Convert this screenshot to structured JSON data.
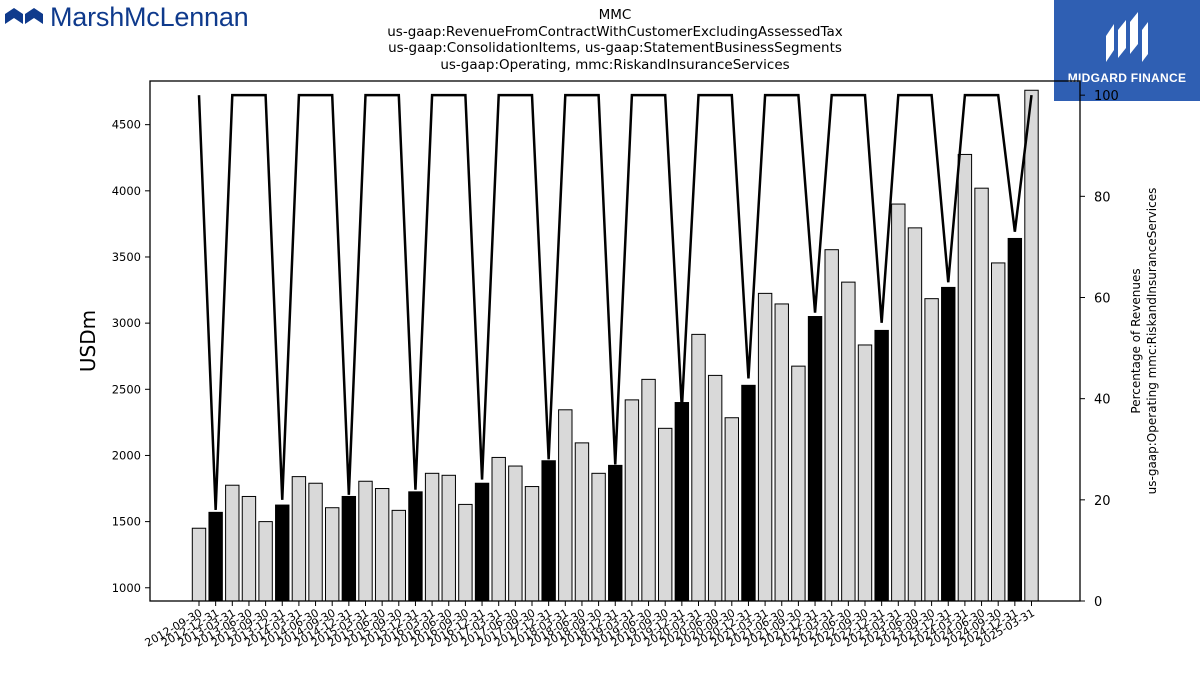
{
  "brand": {
    "left_logo_text": "MarshMcLennan",
    "right_logo_text": "MIDGARD FINANCE",
    "left_color": "#0f3a8c",
    "right_bg": "#2f5fb3"
  },
  "title_lines": [
    "MMC",
    "us-gaap:RevenueFromContractWithCustomerExcludingAssessedTax",
    "us-gaap:ConsolidationItems, us-gaap:StatementBusinessSegments",
    "us-gaap:Operating, mmc:RiskandInsuranceServices"
  ],
  "chart_data": {
    "type": "bar",
    "ylabel": "USDm",
    "y2label_lines": [
      "Percentage of Revenues",
      "us-gaap:Operating mmc:RiskandInsuranceServices"
    ],
    "ylim": [
      900,
      4830
    ],
    "yticks": [
      1000,
      1500,
      2000,
      2500,
      3000,
      3500,
      4000,
      4500
    ],
    "y2lim": [
      0,
      102.8
    ],
    "y2ticks": [
      0,
      20,
      40,
      60,
      80,
      100
    ],
    "categories": [
      "2012-09-30",
      "2012-12-31",
      "2013-03-31",
      "2013-06-30",
      "2013-09-30",
      "2013-12-31",
      "2014-03-31",
      "2014-06-30",
      "2014-09-30",
      "2014-12-31",
      "2015-03-31",
      "2015-06-30",
      "2015-09-30",
      "2015-12-31",
      "2016-03-31",
      "2016-06-30",
      "2016-09-30",
      "2016-12-31",
      "2017-03-31",
      "2017-06-30",
      "2017-09-30",
      "2017-12-31",
      "2018-03-31",
      "2018-06-30",
      "2018-09-30",
      "2018-12-31",
      "2019-03-31",
      "2019-06-30",
      "2019-09-30",
      "2019-12-31",
      "2020-03-31",
      "2020-06-30",
      "2020-09-30",
      "2020-12-31",
      "2021-03-31",
      "2021-06-30",
      "2021-09-30",
      "2021-12-31",
      "2022-03-31",
      "2022-06-30",
      "2022-09-30",
      "2022-12-31",
      "2023-03-31",
      "2023-06-30",
      "2023-09-30",
      "2023-12-31",
      "2024-03-31",
      "2024-06-30",
      "2024-09-30",
      "2024-12-31",
      "2025-03-31"
    ],
    "shown_tick_labels": [
      "2012-09-30",
      "2012-12-31",
      "2013-03-31",
      "2013-06-30",
      "2013-09-30",
      "2013-12-31",
      "2014-03-31",
      "2014-06-30",
      "2014-09-30",
      "2014-12-31",
      "2015-03-31",
      "2015-06-30",
      "2015-09-30",
      "2015-12-31",
      "2016-03-31",
      "2016-06-30",
      "2016-09-30",
      "2016-12-31",
      "2017-03-31",
      "2017-06-30",
      "2017-09-30",
      "2017-12-31",
      "2018-03-31",
      "2018-06-30",
      "2018-09-30",
      "2018-12-31",
      "2019-03-31",
      "2019-06-30",
      "2019-09-30",
      "2019-12-31",
      "2020-03-31",
      "2020-06-30",
      "2020-09-30",
      "2020-12-31",
      "2021-03-31",
      "2021-06-30",
      "2021-09-30",
      "2021-12-31",
      "2022-03-31",
      "2022-06-30",
      "2022-09-30",
      "2022-12-31",
      "2023-03-31",
      "2023-06-30",
      "2023-09-30",
      "2023-12-31",
      "2024-03-31",
      "2024-06-30",
      "2024-09-30",
      "2024-12-31",
      "2025-03-31"
    ],
    "values": [
      1450,
      1570,
      1775,
      1690,
      1500,
      1625,
      1840,
      1790,
      1605,
      1690,
      1805,
      1750,
      1585,
      1725,
      1865,
      1850,
      1630,
      1790,
      1985,
      1920,
      1765,
      1960,
      2345,
      2095,
      1865,
      1925,
      2420,
      2575,
      2205,
      2400,
      2915,
      2605,
      2285,
      2530,
      3225,
      3145,
      2675,
      3050,
      3555,
      3310,
      2835,
      2945,
      3900,
      3720,
      3185,
      3270,
      4275,
      4020,
      3455,
      3640,
      4760
    ],
    "highlight": [
      false,
      true,
      false,
      false,
      false,
      true,
      false,
      false,
      false,
      true,
      false,
      false,
      false,
      true,
      false,
      false,
      false,
      true,
      false,
      false,
      false,
      true,
      false,
      false,
      false,
      true,
      false,
      false,
      false,
      true,
      false,
      false,
      false,
      true,
      false,
      false,
      false,
      true,
      false,
      false,
      false,
      true,
      false,
      false,
      false,
      true,
      false,
      false,
      false,
      true,
      false
    ],
    "percent": [
      100,
      18,
      100,
      100,
      100,
      20,
      100,
      100,
      100,
      21,
      100,
      100,
      100,
      22,
      100,
      100,
      100,
      24,
      100,
      100,
      100,
      28,
      100,
      100,
      100,
      27,
      100,
      100,
      100,
      38,
      100,
      100,
      100,
      44,
      100,
      100,
      100,
      57,
      100,
      100,
      100,
      55,
      100,
      100,
      100,
      63,
      100,
      100,
      100,
      73,
      100
    ],
    "colors": {
      "bar": "#d9d9d9",
      "bar_highlight": "#000000",
      "bar_edge": "#000000",
      "line": "#000000"
    }
  }
}
